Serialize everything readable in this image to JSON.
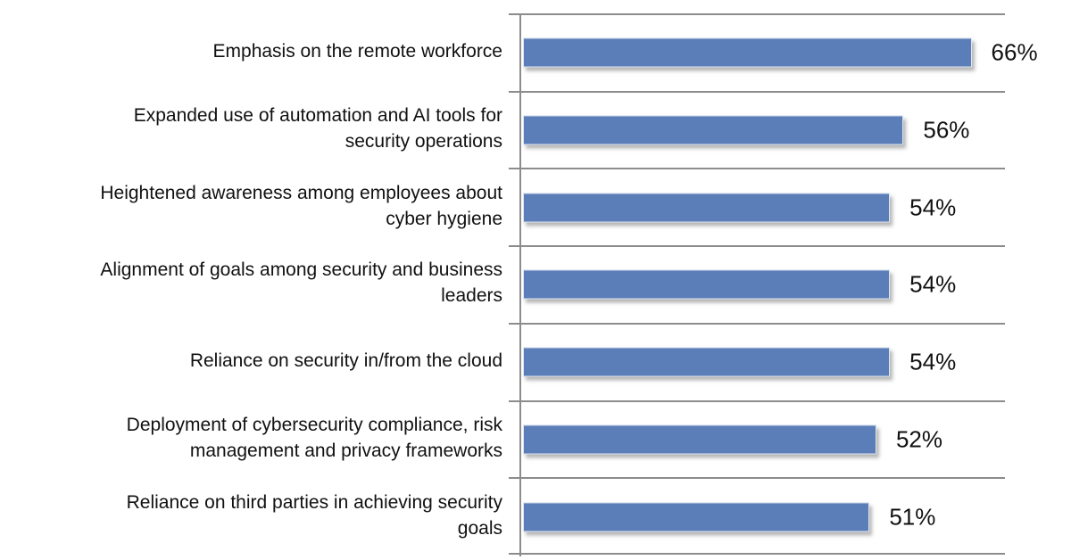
{
  "chart_data": {
    "type": "bar",
    "orientation": "horizontal",
    "title": "",
    "xlabel": "",
    "ylabel": "",
    "xlim": [
      0,
      70
    ],
    "grid": "category separators only, no title, no x-axis tick labels",
    "legend": "none",
    "bar_color": "#5b7db8",
    "gridline_color": "#8c8c8c",
    "background_color": "#ffffff",
    "categories": [
      "Emphasis on the remote workforce",
      "Expanded use of automation and AI tools for\nsecurity operations",
      "Heightened awareness among employees about\ncyber hygiene",
      "Alignment of goals among security and business\nleaders",
      "Reliance on security in/from the cloud",
      "Deployment of cybersecurity compliance, risk\nmanagement and privacy frameworks",
      "Reliance on third parties in achieving security\ngoals"
    ],
    "values": [
      66,
      56,
      54,
      54,
      54,
      52,
      51
    ],
    "value_labels": [
      "66%",
      "56%",
      "54%",
      "54%",
      "54%",
      "52%",
      "51%"
    ]
  }
}
